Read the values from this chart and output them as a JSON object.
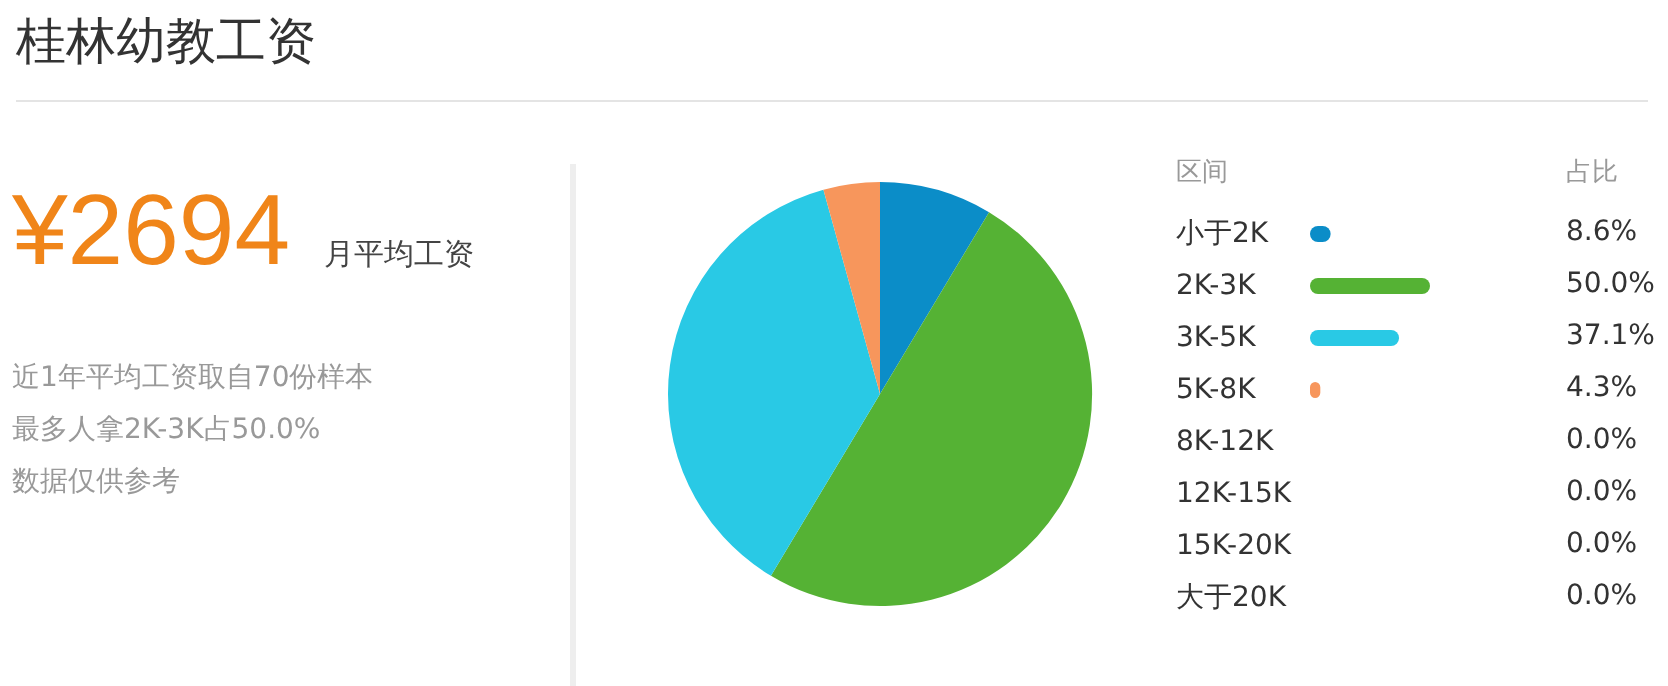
{
  "chart_data": [
    {
      "type": "other",
      "title": "桂林幼教工资",
      "annotations": [
        "¥2694",
        "月平均工资",
        "近1年平均工资取自70份样本",
        "最多人拿2K-3K占50.0%",
        "数据仅供参考"
      ]
    },
    {
      "type": "pie",
      "legend": "right",
      "legend_title": "区间",
      "annotations": [
        "占比"
      ],
      "categories": [
        "小于2K",
        "2K-3K",
        "3K-5K",
        "5K-8K",
        "8K-12K",
        "12K-15K",
        "15K-20K",
        "大于20K"
      ],
      "values": [
        8.6,
        50.0,
        37.1,
        4.3,
        0,
        0,
        0,
        0
      ],
      "colors": [
        "#0b8dc8",
        "#55b234",
        "#29c9e5",
        "#f7965c",
        null,
        null,
        null,
        null
      ],
      "value_labels": [
        "8.6%",
        "50.0%",
        "37.1%",
        "4.3%",
        "0.0%",
        "0.0%",
        "0.0%",
        "0.0%"
      ]
    }
  ]
}
